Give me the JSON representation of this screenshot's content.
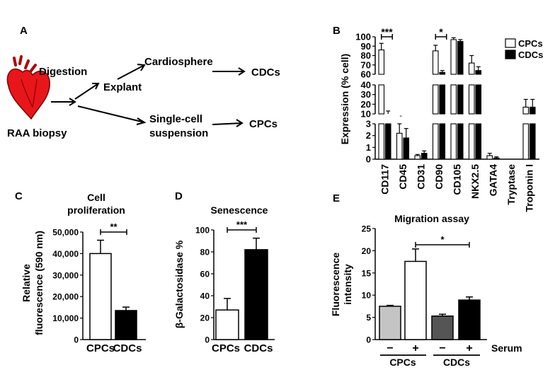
{
  "panel_letters": {
    "a": "A",
    "b": "B",
    "c": "C",
    "d": "D",
    "e": "E"
  },
  "diagram": {
    "biopsy": "RAA biopsy",
    "digestion": "Digestion",
    "explant": "Explant",
    "cardiosphere": "Cardiosphere",
    "cdcs": "CDCs",
    "single_cell_line1": "Single-cell",
    "single_cell_line2": "suspension",
    "cpcs": "CPCs",
    "heart_color": "#e8161b"
  },
  "chart_data": [
    {
      "panel": "B",
      "type": "bar",
      "ylabel": "Expression (% cell)",
      "categories": [
        "CD117",
        "CD45",
        "CD31",
        "CD90",
        "CD105",
        "NKX2.5",
        "GATA4",
        "Tryptase",
        "Troponin I"
      ],
      "series": [
        {
          "name": "CPCs",
          "color": "#ffffff",
          "values": [
            86,
            2.2,
            0.3,
            85,
            97,
            72,
            0.3,
            0,
            17
          ],
          "errors": [
            7,
            0.8,
            0.1,
            6,
            2,
            8,
            0.2,
            0,
            8
          ]
        },
        {
          "name": "CDCs",
          "color": "#000000",
          "values": [
            10,
            1.8,
            0.5,
            62,
            95,
            64,
            0.1,
            0,
            17
          ],
          "errors": [
            3,
            0.8,
            0.2,
            2,
            2,
            4,
            0.1,
            0,
            8
          ]
        }
      ],
      "y_segments": [
        {
          "range": [
            0,
            3
          ],
          "ticks": [
            "0",
            "1",
            "2",
            "3"
          ]
        },
        {
          "range": [
            10,
            40
          ],
          "ticks": [
            "10",
            "20",
            "30",
            "40"
          ]
        },
        {
          "range": [
            60,
            100
          ],
          "ticks": [
            "60",
            "70",
            "80",
            "90",
            "100"
          ]
        }
      ],
      "significance": [
        {
          "category": "CD117",
          "label": "***"
        },
        {
          "category": "CD90",
          "label": "*"
        }
      ],
      "extra_marks": [
        {
          "category": "CD45",
          "label": "-"
        }
      ],
      "legend_placement": "top-right"
    },
    {
      "panel": "C",
      "type": "bar",
      "title_line1": "Cell",
      "title_line2": "proliferation",
      "ylabel_line1": "Relative",
      "ylabel_line2": "fluorescence (590 nm)",
      "categories": [
        "CPCs",
        "CDCs"
      ],
      "values": [
        40000,
        13500
      ],
      "errors": [
        6200,
        1600
      ],
      "colors": [
        "#ffffff",
        "#000000"
      ],
      "ylim": [
        0,
        50000
      ],
      "yticks": [
        "0",
        "10,000",
        "20,000",
        "30,000",
        "40,000",
        "50,000"
      ],
      "significance": "**"
    },
    {
      "panel": "D",
      "type": "bar",
      "title": "Senescence",
      "ylabel": "β-Galactosidase %",
      "categories": [
        "CPCs",
        "CDCs"
      ],
      "values": [
        27,
        82
      ],
      "errors": [
        10.5,
        10.5
      ],
      "colors": [
        "#ffffff",
        "#000000"
      ],
      "ylim": [
        0,
        100
      ],
      "yticks": [
        "0",
        "20",
        "40",
        "60",
        "80",
        "100"
      ],
      "significance": "***"
    },
    {
      "panel": "E",
      "type": "bar",
      "title": "Migration assay",
      "ylabel_line1": "Fluorescence",
      "ylabel_line2": "intensity",
      "categories": [
        "−",
        "+",
        "−",
        "+"
      ],
      "groups": [
        "CPCs",
        "CDCs"
      ],
      "serum_label": "Serum",
      "values": [
        7.5,
        17.6,
        5.3,
        8.9
      ],
      "errors": [
        0.2,
        2.8,
        0.4,
        0.7
      ],
      "colors": [
        "#c4c4c4",
        "#ffffff",
        "#555555",
        "#000000"
      ],
      "ylim": [
        0,
        25
      ],
      "yticks": [
        "0",
        "5",
        "10",
        "15",
        "20",
        "25"
      ],
      "significance": "*"
    }
  ]
}
